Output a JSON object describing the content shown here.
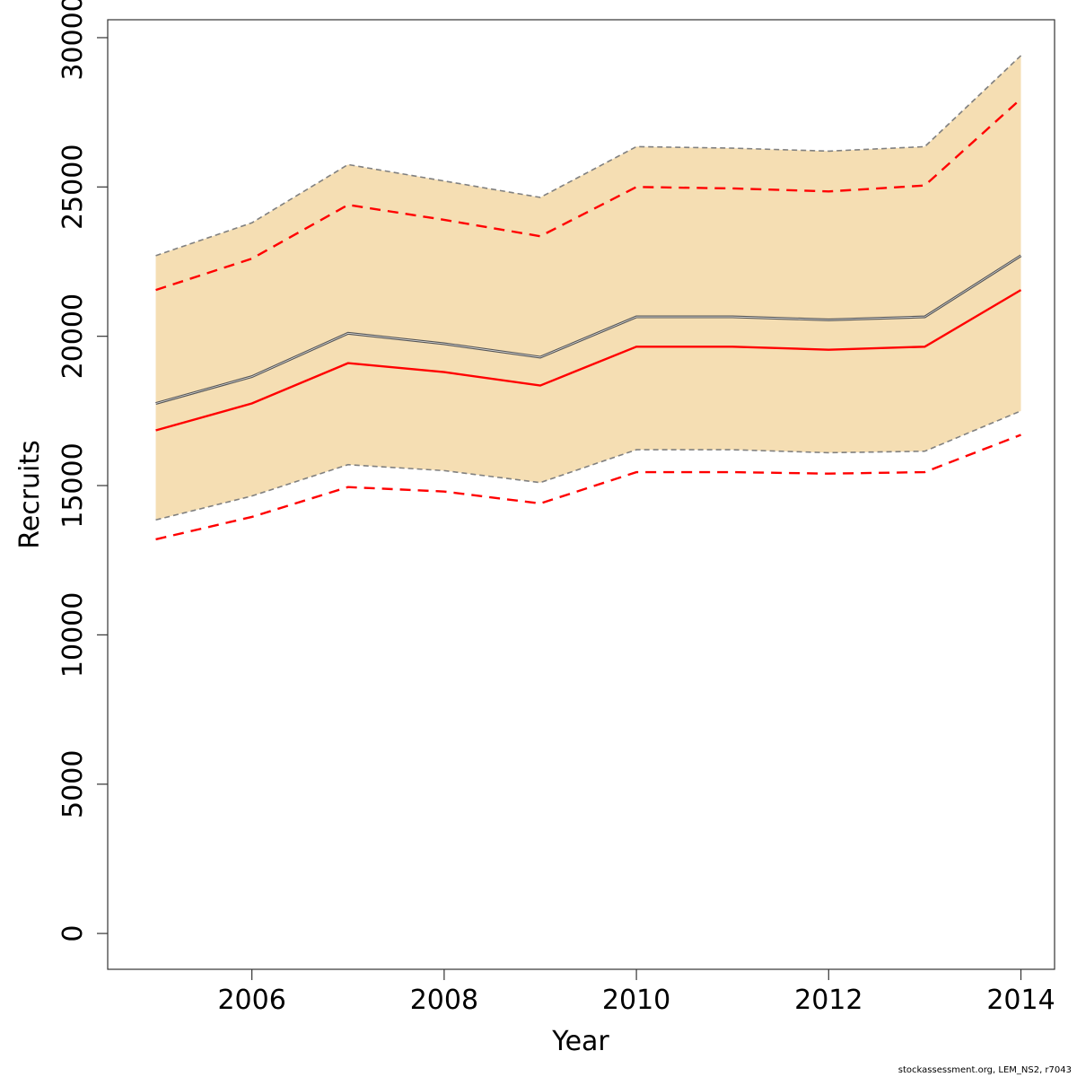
{
  "chart_data": {
    "type": "line",
    "xlabel": "Year",
    "ylabel": "Recruits",
    "x": [
      2005,
      2006,
      2007,
      2008,
      2009,
      2010,
      2011,
      2012,
      2013,
      2014
    ],
    "xlim": [
      2004.5,
      2014.35
    ],
    "ylim": [
      -1200,
      30600
    ],
    "xticks": [
      2006,
      2008,
      2010,
      2012,
      2014
    ],
    "yticks": [
      0,
      5000,
      10000,
      15000,
      20000,
      25000,
      30000
    ],
    "series": [
      {
        "role": "band-upper",
        "style": "dashed",
        "color": "#808080",
        "values": [
          22700,
          23800,
          25750,
          25200,
          24650,
          26350,
          26300,
          26200,
          26350,
          29400
        ]
      },
      {
        "role": "band-lower",
        "style": "dashed",
        "color": "#808080",
        "values": [
          13850,
          14650,
          15700,
          15500,
          15100,
          16200,
          16200,
          16100,
          16150,
          17500
        ]
      },
      {
        "role": "median",
        "style": "solid",
        "color": "#555555",
        "values": [
          17750,
          18650,
          20100,
          19750,
          19300,
          20650,
          20650,
          20550,
          20650,
          22700
        ]
      },
      {
        "role": "upper",
        "style": "dashed",
        "color": "#ff0000",
        "values": [
          21550,
          22600,
          24400,
          23900,
          23350,
          25000,
          24950,
          24850,
          25050,
          27950
        ]
      },
      {
        "role": "lower",
        "style": "dashed",
        "color": "#ff0000",
        "values": [
          13200,
          13950,
          14950,
          14800,
          14400,
          15450,
          15450,
          15400,
          15450,
          16700
        ]
      },
      {
        "role": "estimate",
        "style": "solid",
        "color": "#ff0000",
        "values": [
          16850,
          17750,
          19100,
          18800,
          18350,
          19650,
          19650,
          19550,
          19650,
          21550
        ]
      }
    ],
    "band_fill": "#f5deb3",
    "grid": false,
    "legend": "none"
  },
  "credit": "stockassessment.org, LEM_NS2, r7043"
}
